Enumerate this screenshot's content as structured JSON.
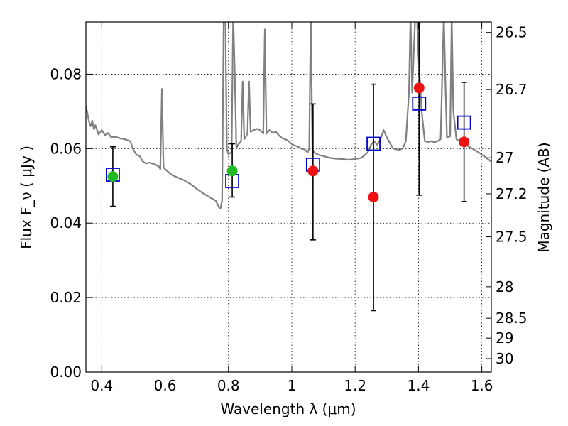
{
  "chart_data": {
    "type": "scatter",
    "xlabel": "Wavelength  λ (μm)",
    "ylabel": "Flux  F_ν  ( μJy )",
    "y2label": "Magnitude (AB)",
    "xlim": [
      0.35,
      1.63
    ],
    "ylim": [
      0.0,
      0.094
    ],
    "grid": true,
    "x_ticks": [
      0.4,
      0.6,
      0.8,
      1.0,
      1.2,
      1.4,
      1.6
    ],
    "x_tick_labels": [
      "0.4",
      "0.6",
      "0.8",
      "1",
      "1.2",
      "1.4",
      "1.6"
    ],
    "y_ticks": [
      0.0,
      0.02,
      0.04,
      0.06,
      0.08
    ],
    "y_tick_labels": [
      "0.00",
      "0.02",
      "0.04",
      "0.06",
      "0.08"
    ],
    "mag_ticks": [
      26.5,
      26.7,
      27,
      27.2,
      27.5,
      28,
      28.5,
      29,
      30
    ],
    "mag_tick_labels": [
      "26.5",
      "26.7",
      "27",
      "27.2",
      "27.5",
      "28",
      "28.5",
      "29",
      "30"
    ],
    "colors": {
      "model": "#808080",
      "model_photometry": "#0000cc",
      "observed_detection": "#22bb22",
      "observed_lowsn": "#ee1111",
      "errorbar": "#000000"
    },
    "series": [
      {
        "kind": "model_spectrum",
        "points": [
          [
            0.35,
            0.0715
          ],
          [
            0.36,
            0.0672
          ],
          [
            0.365,
            0.066
          ],
          [
            0.37,
            0.0675
          ],
          [
            0.375,
            0.0652
          ],
          [
            0.38,
            0.0663
          ],
          [
            0.39,
            0.0638
          ],
          [
            0.4,
            0.065
          ],
          [
            0.41,
            0.0636
          ],
          [
            0.42,
            0.0642
          ],
          [
            0.43,
            0.063
          ],
          [
            0.44,
            0.0632
          ],
          [
            0.45,
            0.063
          ],
          [
            0.46,
            0.0627
          ],
          [
            0.47,
            0.0626
          ],
          [
            0.48,
            0.0623
          ],
          [
            0.49,
            0.062
          ],
          [
            0.5,
            0.0597
          ],
          [
            0.51,
            0.0583
          ],
          [
            0.52,
            0.058
          ],
          [
            0.53,
            0.0565
          ],
          [
            0.54,
            0.056
          ],
          [
            0.55,
            0.0562
          ],
          [
            0.56,
            0.056
          ],
          [
            0.57,
            0.0557
          ],
          [
            0.58,
            0.0552
          ],
          [
            0.585,
            0.0545
          ],
          [
            0.59,
            0.076
          ],
          [
            0.595,
            0.055
          ],
          [
            0.6,
            0.0545
          ],
          [
            0.62,
            0.053
          ],
          [
            0.64,
            0.0522
          ],
          [
            0.66,
            0.0515
          ],
          [
            0.68,
            0.0505
          ],
          [
            0.7,
            0.0492
          ],
          [
            0.72,
            0.048
          ],
          [
            0.74,
            0.047
          ],
          [
            0.76,
            0.046
          ],
          [
            0.77,
            0.0442
          ],
          [
            0.775,
            0.044
          ],
          [
            0.78,
            0.046
          ],
          [
            0.785,
            0.096
          ],
          [
            0.79,
            0.096
          ],
          [
            0.795,
            0.06
          ],
          [
            0.8,
            0.0585
          ],
          [
            0.81,
            0.059
          ],
          [
            0.815,
            0.096
          ],
          [
            0.82,
            0.08
          ],
          [
            0.825,
            0.06
          ],
          [
            0.83,
            0.061
          ],
          [
            0.84,
            0.062
          ],
          [
            0.845,
            0.078
          ],
          [
            0.85,
            0.0625
          ],
          [
            0.86,
            0.064
          ],
          [
            0.865,
            0.078
          ],
          [
            0.87,
            0.0645
          ],
          [
            0.88,
            0.065
          ],
          [
            0.89,
            0.0653
          ],
          [
            0.9,
            0.065
          ],
          [
            0.91,
            0.064
          ],
          [
            0.915,
            0.092
          ],
          [
            0.92,
            0.064
          ],
          [
            0.93,
            0.065
          ],
          [
            0.94,
            0.0642
          ],
          [
            0.95,
            0.0645
          ],
          [
            0.96,
            0.0635
          ],
          [
            0.97,
            0.0628
          ],
          [
            0.98,
            0.0625
          ],
          [
            0.99,
            0.062
          ],
          [
            1.0,
            0.0612
          ],
          [
            1.01,
            0.0608
          ],
          [
            1.02,
            0.0605
          ],
          [
            1.03,
            0.06
          ],
          [
            1.04,
            0.0598
          ],
          [
            1.05,
            0.059
          ],
          [
            1.055,
            0.06
          ],
          [
            1.06,
            0.096
          ],
          [
            1.065,
            0.06
          ],
          [
            1.07,
            0.059
          ],
          [
            1.08,
            0.0585
          ],
          [
            1.09,
            0.0582
          ],
          [
            1.1,
            0.058
          ],
          [
            1.12,
            0.0575
          ],
          [
            1.14,
            0.0573
          ],
          [
            1.16,
            0.0572
          ],
          [
            1.18,
            0.057
          ],
          [
            1.2,
            0.0572
          ],
          [
            1.22,
            0.0575
          ],
          [
            1.24,
            0.059
          ],
          [
            1.25,
            0.061
          ],
          [
            1.26,
            0.062
          ],
          [
            1.27,
            0.061
          ],
          [
            1.28,
            0.0625
          ],
          [
            1.29,
            0.065
          ],
          [
            1.3,
            0.063
          ],
          [
            1.31,
            0.0615
          ],
          [
            1.32,
            0.06
          ],
          [
            1.33,
            0.0598
          ],
          [
            1.34,
            0.0597
          ],
          [
            1.35,
            0.06
          ],
          [
            1.36,
            0.062
          ],
          [
            1.37,
            0.075
          ],
          [
            1.375,
            0.096
          ],
          [
            1.38,
            0.075
          ],
          [
            1.39,
            0.096
          ],
          [
            1.395,
            0.096
          ],
          [
            1.4,
            0.085
          ],
          [
            1.41,
            0.07
          ],
          [
            1.42,
            0.062
          ],
          [
            1.43,
            0.0618
          ],
          [
            1.44,
            0.062
          ],
          [
            1.45,
            0.0617
          ],
          [
            1.46,
            0.062
          ],
          [
            1.47,
            0.0625
          ],
          [
            1.48,
            0.096
          ],
          [
            1.485,
            0.078
          ],
          [
            1.49,
            0.063
          ],
          [
            1.5,
            0.0633
          ],
          [
            1.505,
            0.096
          ],
          [
            1.51,
            0.07
          ],
          [
            1.52,
            0.0625
          ],
          [
            1.53,
            0.062
          ],
          [
            1.54,
            0.0615
          ],
          [
            1.55,
            0.061
          ],
          [
            1.57,
            0.06
          ],
          [
            1.59,
            0.059
          ],
          [
            1.61,
            0.0578
          ],
          [
            1.63,
            0.0565
          ]
        ]
      },
      {
        "kind": "model_photometry",
        "points": [
          [
            0.435,
            0.053
          ],
          [
            0.812,
            0.0513
          ],
          [
            1.067,
            0.0557
          ],
          [
            1.258,
            0.0613
          ],
          [
            1.402,
            0.0721
          ],
          [
            1.544,
            0.067
          ]
        ]
      },
      {
        "kind": "observed",
        "points": [
          {
            "x": 0.435,
            "y": 0.0525,
            "err_low": 0.0445,
            "err_high": 0.0605,
            "detection": true
          },
          {
            "x": 0.812,
            "y": 0.054,
            "err_low": 0.047,
            "err_high": 0.0613,
            "detection": true
          },
          {
            "x": 1.067,
            "y": 0.054,
            "err_low": 0.0355,
            "err_high": 0.072,
            "detection": false
          },
          {
            "x": 1.258,
            "y": 0.047,
            "err_low": 0.0165,
            "err_high": 0.0773,
            "detection": false
          },
          {
            "x": 1.402,
            "y": 0.0763,
            "err_low": 0.0475,
            "err_high": 0.096,
            "detection": false
          },
          {
            "x": 1.544,
            "y": 0.0618,
            "err_low": 0.0458,
            "err_high": 0.0778,
            "detection": false
          }
        ]
      }
    ]
  }
}
